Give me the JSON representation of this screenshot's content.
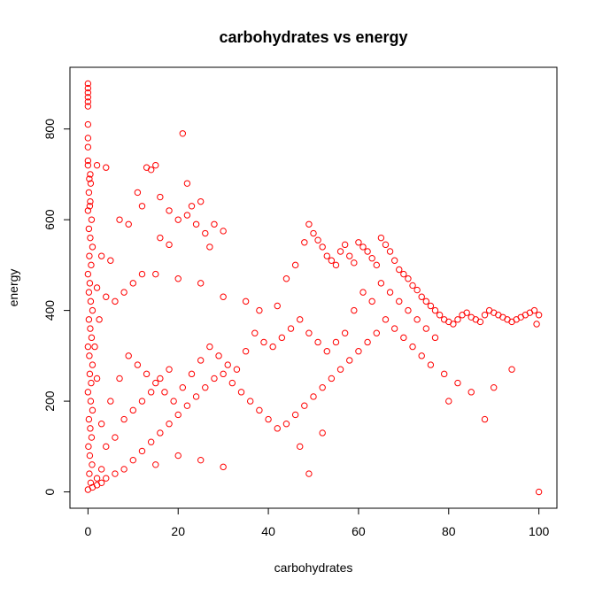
{
  "chart_data": {
    "type": "scatter",
    "title": "carbohydrates vs energy",
    "xlabel": "carbohydrates",
    "ylabel": "energy",
    "xlim": [
      -4,
      104
    ],
    "ylim": [
      -36,
      936
    ],
    "xticks": [
      0,
      20,
      40,
      60,
      80,
      100
    ],
    "yticks": [
      0,
      200,
      400,
      600,
      800
    ],
    "grid": false,
    "point_color": "#ff0000",
    "point_shape": "open-circle",
    "series": [
      {
        "points": [
          [
            0,
            900
          ],
          [
            0,
            890
          ],
          [
            0,
            880
          ],
          [
            0,
            870
          ],
          [
            0,
            860
          ],
          [
            0,
            850
          ],
          [
            0,
            810
          ],
          [
            0,
            780
          ],
          [
            0,
            760
          ],
          [
            0,
            730
          ],
          [
            0,
            720
          ],
          [
            0.5,
            700
          ],
          [
            0.3,
            690
          ],
          [
            0.6,
            680
          ],
          [
            0.2,
            660
          ],
          [
            0.5,
            640
          ],
          [
            0.4,
            630
          ],
          [
            0,
            620
          ],
          [
            0.8,
            600
          ],
          [
            0.2,
            580
          ],
          [
            0.5,
            560
          ],
          [
            1,
            540
          ],
          [
            0.3,
            520
          ],
          [
            0.7,
            500
          ],
          [
            0,
            480
          ],
          [
            0.4,
            460
          ],
          [
            0.2,
            440
          ],
          [
            0.6,
            420
          ],
          [
            1,
            400
          ],
          [
            0.2,
            380
          ],
          [
            0.5,
            360
          ],
          [
            0.8,
            340
          ],
          [
            0,
            320
          ],
          [
            0.3,
            300
          ],
          [
            1,
            280
          ],
          [
            0.4,
            260
          ],
          [
            0.7,
            240
          ],
          [
            0,
            220
          ],
          [
            0.6,
            200
          ],
          [
            1,
            180
          ],
          [
            0.2,
            160
          ],
          [
            0.5,
            140
          ],
          [
            0.8,
            120
          ],
          [
            0.1,
            100
          ],
          [
            0.4,
            80
          ],
          [
            0.9,
            60
          ],
          [
            0.3,
            40
          ],
          [
            0.6,
            20
          ],
          [
            0,
            5
          ],
          [
            1,
            10
          ],
          [
            2,
            30
          ],
          [
            3,
            50
          ],
          [
            2,
            720
          ],
          [
            4,
            715
          ],
          [
            3,
            520
          ],
          [
            5,
            510
          ],
          [
            2,
            450
          ],
          [
            4,
            430
          ],
          [
            6,
            420
          ],
          [
            8,
            440
          ],
          [
            10,
            460
          ],
          [
            12,
            480
          ],
          [
            13,
            715
          ],
          [
            14,
            710
          ],
          [
            15,
            720
          ],
          [
            11,
            660
          ],
          [
            16,
            650
          ],
          [
            18,
            620
          ],
          [
            20,
            600
          ],
          [
            21,
            790
          ],
          [
            22,
            680
          ],
          [
            22,
            610
          ],
          [
            23,
            630
          ],
          [
            24,
            590
          ],
          [
            25,
            640
          ],
          [
            26,
            570
          ],
          [
            28,
            590
          ],
          [
            30,
            575
          ],
          [
            27,
            540
          ],
          [
            16,
            560
          ],
          [
            18,
            545
          ],
          [
            12,
            630
          ],
          [
            9,
            590
          ],
          [
            7,
            600
          ],
          [
            15,
            480
          ],
          [
            20,
            470
          ],
          [
            25,
            460
          ],
          [
            30,
            430
          ],
          [
            35,
            420
          ],
          [
            38,
            400
          ],
          [
            42,
            410
          ],
          [
            44,
            470
          ],
          [
            46,
            500
          ],
          [
            48,
            550
          ],
          [
            49,
            590
          ],
          [
            50,
            570
          ],
          [
            51,
            555
          ],
          [
            52,
            540
          ],
          [
            53,
            520
          ],
          [
            54,
            510
          ],
          [
            55,
            500
          ],
          [
            56,
            530
          ],
          [
            57,
            545
          ],
          [
            58,
            520
          ],
          [
            59,
            505
          ],
          [
            60,
            550
          ],
          [
            61,
            540
          ],
          [
            62,
            530
          ],
          [
            63,
            515
          ],
          [
            64,
            500
          ],
          [
            65,
            560
          ],
          [
            66,
            545
          ],
          [
            67,
            530
          ],
          [
            68,
            510
          ],
          [
            69,
            490
          ],
          [
            70,
            480
          ],
          [
            71,
            470
          ],
          [
            72,
            455
          ],
          [
            73,
            445
          ],
          [
            74,
            430
          ],
          [
            75,
            420
          ],
          [
            76,
            410
          ],
          [
            77,
            400
          ],
          [
            78,
            390
          ],
          [
            79,
            380
          ],
          [
            80,
            375
          ],
          [
            81,
            370
          ],
          [
            82,
            380
          ],
          [
            83,
            390
          ],
          [
            84,
            395
          ],
          [
            85,
            385
          ],
          [
            86,
            380
          ],
          [
            87,
            375
          ],
          [
            88,
            390
          ],
          [
            89,
            400
          ],
          [
            90,
            395
          ],
          [
            91,
            390
          ],
          [
            92,
            385
          ],
          [
            93,
            380
          ],
          [
            94,
            375
          ],
          [
            95,
            380
          ],
          [
            96,
            385
          ],
          [
            97,
            390
          ],
          [
            98,
            395
          ],
          [
            99,
            400
          ],
          [
            100,
            390
          ],
          [
            99.5,
            370
          ],
          [
            100,
            0
          ],
          [
            94,
            270
          ],
          [
            90,
            230
          ],
          [
            88,
            160
          ],
          [
            85,
            220
          ],
          [
            82,
            240
          ],
          [
            80,
            200
          ],
          [
            79,
            260
          ],
          [
            76,
            280
          ],
          [
            74,
            300
          ],
          [
            72,
            320
          ],
          [
            70,
            340
          ],
          [
            68,
            360
          ],
          [
            66,
            380
          ],
          [
            64,
            350
          ],
          [
            62,
            330
          ],
          [
            60,
            310
          ],
          [
            58,
            290
          ],
          [
            56,
            270
          ],
          [
            54,
            250
          ],
          [
            52,
            230
          ],
          [
            50,
            210
          ],
          [
            48,
            190
          ],
          [
            46,
            170
          ],
          [
            44,
            150
          ],
          [
            42,
            140
          ],
          [
            40,
            160
          ],
          [
            38,
            180
          ],
          [
            36,
            200
          ],
          [
            34,
            220
          ],
          [
            32,
            240
          ],
          [
            30,
            260
          ],
          [
            28,
            250
          ],
          [
            26,
            230
          ],
          [
            24,
            210
          ],
          [
            22,
            190
          ],
          [
            20,
            170
          ],
          [
            18,
            150
          ],
          [
            16,
            130
          ],
          [
            14,
            110
          ],
          [
            12,
            90
          ],
          [
            10,
            70
          ],
          [
            8,
            50
          ],
          [
            6,
            40
          ],
          [
            4,
            30
          ],
          [
            3,
            20
          ],
          [
            2,
            15
          ],
          [
            5,
            200
          ],
          [
            7,
            250
          ],
          [
            9,
            300
          ],
          [
            11,
            280
          ],
          [
            13,
            260
          ],
          [
            15,
            240
          ],
          [
            17,
            220
          ],
          [
            19,
            200
          ],
          [
            21,
            230
          ],
          [
            23,
            260
          ],
          [
            25,
            290
          ],
          [
            27,
            320
          ],
          [
            29,
            300
          ],
          [
            31,
            280
          ],
          [
            33,
            270
          ],
          [
            35,
            310
          ],
          [
            37,
            350
          ],
          [
            39,
            330
          ],
          [
            41,
            320
          ],
          [
            43,
            340
          ],
          [
            45,
            360
          ],
          [
            47,
            380
          ],
          [
            49,
            350
          ],
          [
            51,
            330
          ],
          [
            53,
            310
          ],
          [
            55,
            330
          ],
          [
            57,
            350
          ],
          [
            59,
            400
          ],
          [
            61,
            440
          ],
          [
            63,
            420
          ],
          [
            65,
            460
          ],
          [
            67,
            440
          ],
          [
            69,
            420
          ],
          [
            71,
            400
          ],
          [
            73,
            380
          ],
          [
            75,
            360
          ],
          [
            77,
            340
          ],
          [
            47,
            100
          ],
          [
            49,
            40
          ],
          [
            52,
            130
          ],
          [
            30,
            55
          ],
          [
            25,
            70
          ],
          [
            20,
            80
          ],
          [
            15,
            60
          ],
          [
            6,
            120
          ],
          [
            8,
            160
          ],
          [
            10,
            180
          ],
          [
            12,
            200
          ],
          [
            14,
            220
          ],
          [
            16,
            250
          ],
          [
            18,
            270
          ],
          [
            4,
            100
          ],
          [
            3,
            150
          ],
          [
            2,
            250
          ],
          [
            1.5,
            320
          ],
          [
            2.5,
            380
          ]
        ]
      }
    ]
  }
}
